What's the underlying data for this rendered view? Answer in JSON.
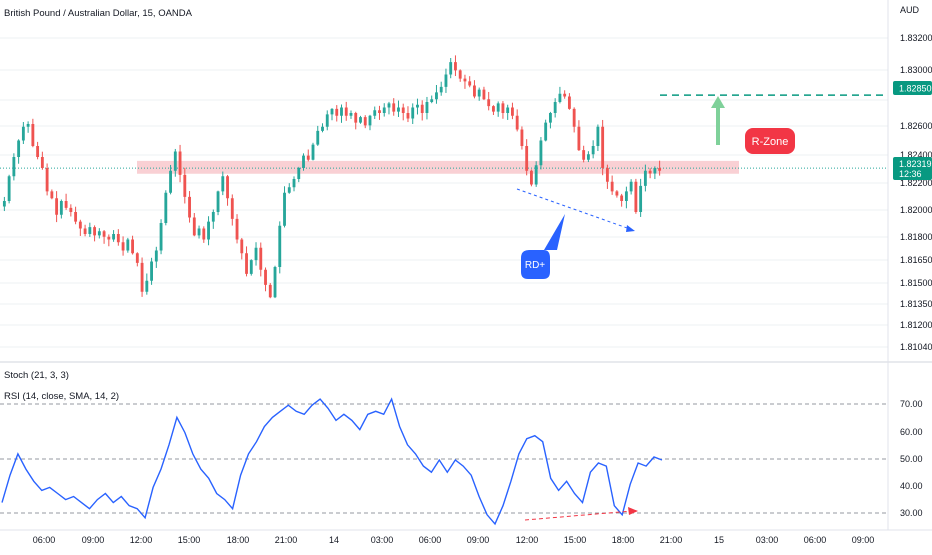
{
  "header": {
    "title": "British Pound / Australian Dollar, 15, OANDA",
    "currency": "AUD"
  },
  "price_axis": {
    "ticks": [
      "1.83200",
      "1.83000",
      "1.82600",
      "1.82400",
      "1.82200",
      "1.82000",
      "1.81800",
      "1.81650",
      "1.81500",
      "1.81350",
      "1.81200",
      "1.81040"
    ],
    "target_label": "1.82850",
    "current_label": "1.82319",
    "countdown": "12:36"
  },
  "time_axis": {
    "ticks": [
      "06:00",
      "09:00",
      "12:00",
      "15:00",
      "18:00",
      "21:00",
      "14",
      "03:00",
      "06:00",
      "09:00",
      "12:00",
      "15:00",
      "18:00",
      "21:00",
      "15",
      "03:00",
      "06:00",
      "09:00"
    ]
  },
  "annotations": {
    "rzone_label": "R-Zone",
    "rd_label": "RD+"
  },
  "indicators": {
    "stoch_label": "Stoch (21, 3, 3)",
    "rsi_label": "RSI (14, close, SMA, 14, 2)",
    "rsi_ticks": [
      "70.00",
      "60.00",
      "50.00",
      "40.00",
      "30.00"
    ]
  },
  "colors": {
    "up": "#26a69a",
    "down": "#ef5350",
    "rsi": "#2962ff",
    "target": "#089981",
    "zone": "#f8c8cc",
    "rd_badge": "#2962ff",
    "rzone_badge": "#f23645"
  },
  "chart_data": [
    {
      "type": "candlestick",
      "title": "British Pound / Australian Dollar, 15, OANDA",
      "ylim": [
        1.8096,
        1.8336
      ],
      "zone": [
        1.823,
        1.8235
      ],
      "target": 1.8285,
      "current": 1.82319,
      "closes": [
        1.8208,
        1.8226,
        1.824,
        1.8252,
        1.8262,
        1.8264,
        1.8248,
        1.824,
        1.8232,
        1.8215,
        1.821,
        1.8198,
        1.8208,
        1.8203,
        1.82,
        1.8193,
        1.8188,
        1.8184,
        1.8189,
        1.8183,
        1.8186,
        1.8182,
        1.818,
        1.8184,
        1.8178,
        1.8172,
        1.818,
        1.817,
        1.8163,
        1.8142,
        1.815,
        1.8164,
        1.8172,
        1.8192,
        1.8214,
        1.823,
        1.8244,
        1.8227,
        1.8211,
        1.8196,
        1.8183,
        1.8188,
        1.818,
        1.8193,
        1.82,
        1.8215,
        1.8226,
        1.821,
        1.8195,
        1.818,
        1.817,
        1.8155,
        1.8165,
        1.8174,
        1.8158,
        1.8147,
        1.8138,
        1.816,
        1.819,
        1.8214,
        1.8218,
        1.8224,
        1.8232,
        1.8241,
        1.8238,
        1.8249,
        1.8259,
        1.8262,
        1.8271,
        1.8275,
        1.827,
        1.8276,
        1.827,
        1.8272,
        1.8265,
        1.8269,
        1.8263,
        1.827,
        1.8274,
        1.8272,
        1.8276,
        1.8279,
        1.8273,
        1.8276,
        1.8272,
        1.8268,
        1.8276,
        1.8278,
        1.8272,
        1.828,
        1.8282,
        1.8287,
        1.8291,
        1.83,
        1.8309,
        1.8303,
        1.8297,
        1.8295,
        1.8292,
        1.8284,
        1.8289,
        1.8282,
        1.8277,
        1.8273,
        1.8279,
        1.8272,
        1.8276,
        1.827,
        1.826,
        1.8248,
        1.823,
        1.822,
        1.8234,
        1.8252,
        1.8265,
        1.8272,
        1.828,
        1.8286,
        1.8284,
        1.8275,
        1.8262,
        1.8245,
        1.8238,
        1.8242,
        1.8248,
        1.8262,
        1.8232,
        1.8222,
        1.8215,
        1.8212,
        1.8208,
        1.8215,
        1.8222,
        1.82,
        1.8219,
        1.823,
        1.8228,
        1.8232,
        1.823
      ]
    },
    {
      "type": "line",
      "title": "RSI (14, close, SMA, 14, 2)",
      "ylim": [
        27,
        73
      ],
      "values": [
        36,
        45,
        52,
        47,
        43,
        40,
        41,
        39,
        37,
        38,
        36,
        34,
        37,
        39,
        36,
        38,
        35,
        34,
        31,
        41,
        47,
        55,
        64,
        59,
        52,
        47,
        44,
        39,
        37,
        34,
        45,
        52,
        56,
        61,
        64,
        66,
        68,
        66,
        65,
        68,
        70,
        67,
        63,
        65,
        63,
        60,
        65,
        66,
        65,
        70,
        61,
        55,
        52,
        48,
        46,
        50,
        46,
        50,
        48,
        45,
        38,
        32,
        29,
        35,
        43,
        52,
        57,
        58,
        56,
        44,
        40,
        43,
        39,
        36,
        46,
        49,
        48,
        35,
        32,
        42,
        49,
        48,
        51,
        50
      ]
    }
  ]
}
